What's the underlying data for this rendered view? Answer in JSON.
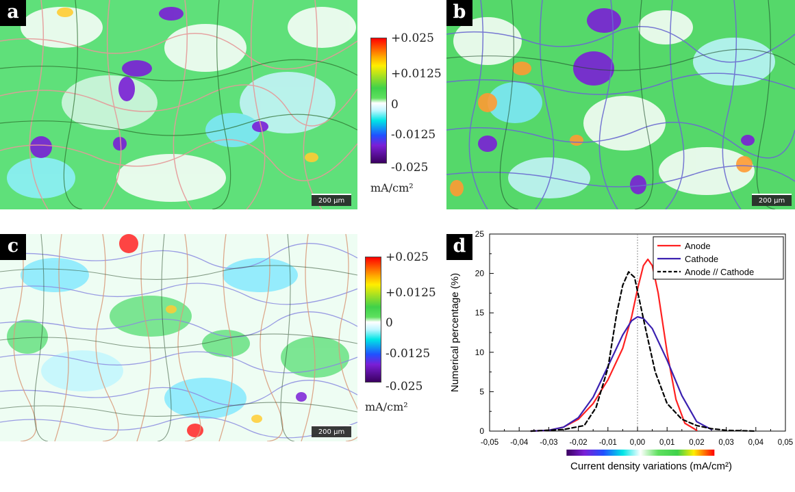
{
  "panels": {
    "a": {
      "label": "a",
      "scale": "200 µm"
    },
    "b": {
      "label": "b",
      "scale": "200 µm"
    },
    "c": {
      "label": "c",
      "scale": "200 µm"
    },
    "d": {
      "label": "d"
    }
  },
  "colorbars": {
    "top": {
      "ticks": [
        "+0.025",
        "+0.0125",
        "0",
        "-0.0125",
        "-0.025"
      ],
      "unit": "mA/cm²"
    },
    "bottom": {
      "ticks": [
        "+0.025",
        "+0.0125",
        "0",
        "-0.0125",
        "-0.025"
      ],
      "unit": "mA/cm²"
    }
  },
  "colors": {
    "anode": "#ff2020",
    "cathode": "#3a20b0",
    "combined": "#000000"
  },
  "chart_data": {
    "type": "line",
    "xlabel": "Current density variations (mA/cm²)",
    "ylabel": "Numerical percentage (%)",
    "xlim": [
      -0.05,
      0.05
    ],
    "ylim": [
      0,
      25
    ],
    "xticks": [
      "-0,05",
      "-0,04",
      "-0,03",
      "-0,02",
      "-0,01",
      "0,00",
      "0,01",
      "0,02",
      "0,03",
      "0,04",
      "0,05"
    ],
    "yticks": [
      "0",
      "5",
      "10",
      "15",
      "20",
      "25"
    ],
    "legend_position": "top-right",
    "series": [
      {
        "name": "Anode",
        "style": "solid",
        "x": [
          -0.036,
          -0.03,
          -0.025,
          -0.02,
          -0.015,
          -0.01,
          -0.005,
          -0.002,
          0.0,
          0.002,
          0.0035,
          0.005,
          0.007,
          0.01,
          0.013,
          0.016,
          0.02
        ],
        "y": [
          0,
          0.1,
          0.5,
          1.5,
          3.5,
          6.5,
          10.5,
          14.5,
          18.0,
          21.0,
          21.8,
          21.0,
          17.5,
          10.0,
          4.0,
          1.0,
          0.1
        ]
      },
      {
        "name": "Cathode",
        "style": "solid",
        "x": [
          -0.036,
          -0.03,
          -0.025,
          -0.02,
          -0.015,
          -0.01,
          -0.005,
          -0.002,
          0.0,
          0.002,
          0.005,
          0.01,
          0.015,
          0.02,
          0.025
        ],
        "y": [
          0,
          0.1,
          0.5,
          1.7,
          4.3,
          8.2,
          12.2,
          14.0,
          14.5,
          14.3,
          13.0,
          9.0,
          4.5,
          1.2,
          0.2
        ]
      },
      {
        "name": "Anode // Cathode",
        "style": "dashed",
        "x": [
          -0.036,
          -0.025,
          -0.018,
          -0.014,
          -0.01,
          -0.007,
          -0.005,
          -0.003,
          -0.001,
          0.001,
          0.003,
          0.006,
          0.01,
          0.015,
          0.02,
          0.025,
          0.03,
          0.04
        ],
        "y": [
          0,
          0.2,
          0.7,
          3.0,
          8.0,
          15.0,
          18.5,
          20.2,
          19.5,
          16.0,
          12.5,
          7.5,
          3.5,
          1.5,
          0.7,
          0.3,
          0.1,
          0
        ]
      }
    ]
  }
}
